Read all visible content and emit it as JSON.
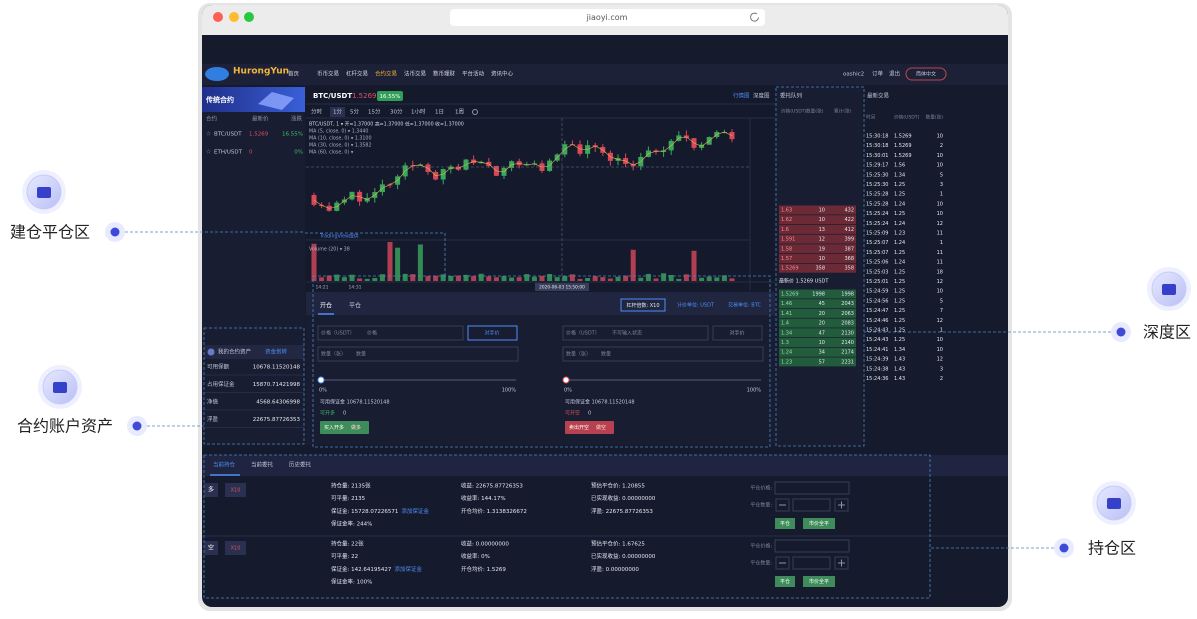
{
  "browser": {
    "url": "jiaoyi.com"
  },
  "annotations": [
    {
      "label": "建仓平仓区"
    },
    {
      "label": "合约账户资产"
    },
    {
      "label": "深度区"
    },
    {
      "label": "持仓区"
    }
  ],
  "nav": {
    "logo": "HurongYun",
    "items": [
      "首页",
      "币币交易",
      "杠杆交易",
      "合约交易",
      "法币交易",
      "数币理财",
      "平台活动",
      "资讯中心"
    ],
    "user": "oashic2",
    "links": [
      "订单",
      "退出"
    ],
    "language": "简体中文"
  },
  "markets": {
    "banner": "传统合约",
    "headers": [
      "合约",
      "最新价",
      "涨跌"
    ],
    "rows": [
      [
        "BTC/USDT",
        "1.5269",
        "16.55%"
      ],
      [
        "ETH/USDT",
        "0",
        "0%"
      ]
    ]
  },
  "assets": {
    "title": "我的合约资产",
    "transfer": "资金划转",
    "rows": [
      [
        "可用保额",
        "10678.11520148"
      ],
      [
        "占用保证金",
        "15870.71421998"
      ],
      [
        "净值",
        "4568.64306998"
      ],
      [
        "浮盈",
        "22675.87726353"
      ]
    ]
  },
  "chart": {
    "symbol": "BTC/USDT",
    "price": "1.5269",
    "change": "16.55%",
    "views": [
      "行情图",
      "深度图"
    ],
    "intervals": [
      "分时",
      "1分",
      "5分",
      "15分",
      "30分",
      "1小时",
      "1日",
      "1周"
    ],
    "legend": [
      "BTC/USDT, 1 ▾  开=1.37000  高=1.37000  低=1.37000  收=1.37000",
      "MA (5, close, 0) ▾  1.3440",
      "MA (10, close, 0) ▾  1.3100",
      "MA (30, close, 0) ▾  1.3582",
      "MA (60, close, 0) ▾"
    ],
    "credit": "TradingView提供",
    "volume": "Volume (20) ▾  38",
    "times": [
      "14:21",
      "14:31"
    ],
    "cursor_time": "2020-06-03 15:50:00"
  },
  "order": {
    "tabs": [
      "开仓",
      "平仓"
    ],
    "leverage": "杠杆倍数: X10",
    "quote": "计价单位: USDT",
    "base": "交易单位: BTC",
    "forms": [
      {
        "price_label": "价格（USDT）",
        "price_placeholder": "价格",
        "counter": "对手价",
        "qty_label": "数量（张）",
        "qty_placeholder": "数量",
        "min": "0%",
        "max": "100%",
        "margin": "可用保证金 10678.11520148",
        "available": "可开多",
        "available_value": "0",
        "submit": "买入开多",
        "submit_hint": "做多"
      },
      {
        "price_label": "价格（USDT）",
        "price_placeholder": "不可输入状态",
        "counter": "对手价",
        "qty_label": "数量（张）",
        "qty_placeholder": "数量",
        "min": "0%",
        "max": "100%",
        "margin": "可用保证金 10678.11520148",
        "available": "可开空",
        "available_value": "0",
        "submit": "卖出开空",
        "submit_hint": "做空"
      }
    ]
  },
  "book": {
    "title": "委托队列",
    "headers": [
      "价格(USDT)",
      "数量(张)",
      "累计(张)"
    ],
    "asks": [
      [
        "1.63",
        "10",
        "432"
      ],
      [
        "1.62",
        "10",
        "422"
      ],
      [
        "1.6",
        "13",
        "412"
      ],
      [
        "1.591",
        "12",
        "399"
      ],
      [
        "1.58",
        "19",
        "387"
      ],
      [
        "1.57",
        "10",
        "368"
      ],
      [
        "1.5269",
        "358",
        "358"
      ]
    ],
    "last": "最新价 1.5269 USDT",
    "bids": [
      [
        "1.5269",
        "1998",
        "1998"
      ],
      [
        "1.46",
        "45",
        "2043"
      ],
      [
        "1.41",
        "20",
        "2063"
      ],
      [
        "1.4",
        "20",
        "2083"
      ],
      [
        "1.34",
        "47",
        "2130"
      ],
      [
        "1.3",
        "10",
        "2140"
      ],
      [
        "1.24",
        "34",
        "2174"
      ],
      [
        "1.23",
        "57",
        "2231"
      ]
    ]
  },
  "trades": {
    "title": "最新交易",
    "headers": [
      "时间",
      "价格(USDT)",
      "数量(张)"
    ],
    "rows": [
      [
        "15:30:18",
        "1.5269",
        "10"
      ],
      [
        "15:30:18",
        "1.5269",
        "2"
      ],
      [
        "15:30:01",
        "1.5269",
        "10"
      ],
      [
        "15:29:17",
        "1.56",
        "10"
      ],
      [
        "15:25:30",
        "1.34",
        "5"
      ],
      [
        "15:25:30",
        "1.25",
        "3"
      ],
      [
        "15:25:28",
        "1.25",
        "1"
      ],
      [
        "15:25:28",
        "1.24",
        "10"
      ],
      [
        "15:25:24",
        "1.25",
        "10"
      ],
      [
        "15:25:24",
        "1.24",
        "12"
      ],
      [
        "15:25:09",
        "1.23",
        "11"
      ],
      [
        "15:25:07",
        "1.24",
        "1"
      ],
      [
        "15:25:07",
        "1.25",
        "11"
      ],
      [
        "15:25:06",
        "1.24",
        "11"
      ],
      [
        "15:25:03",
        "1.25",
        "18"
      ],
      [
        "15:25:01",
        "1.25",
        "12"
      ],
      [
        "15:24:59",
        "1.25",
        "10"
      ],
      [
        "15:24:56",
        "1.25",
        "5"
      ],
      [
        "15:24:47",
        "1.25",
        "7"
      ],
      [
        "15:24:46",
        "1.25",
        "12"
      ],
      [
        "15:24:43",
        "1.25",
        "1"
      ],
      [
        "15:24:43",
        "1.25",
        "10"
      ],
      [
        "15:24:41",
        "1.34",
        "10"
      ],
      [
        "15:24:39",
        "1.43",
        "12"
      ],
      [
        "15:24:38",
        "1.43",
        "3"
      ],
      [
        "15:24:36",
        "1.43",
        "2"
      ]
    ]
  },
  "positions": {
    "tabs": [
      "当前持仓",
      "当前委托",
      "历史委托"
    ],
    "rows": [
      {
        "side": "多",
        "leverage": "X10",
        "columns": [
          [
            "持仓量: 2135张",
            "可平量: 2135",
            "保证金: 15728.07226571",
            "保证金率: 244%"
          ],
          [
            "收益: 22675.87726353",
            "收益率: 144.17%",
            "开仓均价: 1.3138326672"
          ],
          [
            "预估平仓价: 1.20855",
            "已实现收益: 0.00000000",
            "浮盈: 22675.87726353"
          ]
        ],
        "add_margin": "添加保证金",
        "close_price": "平仓价格:",
        "close_qty": "平仓数量:",
        "close": "平仓",
        "close_all": "市价全平"
      },
      {
        "side": "空",
        "leverage": "X10",
        "columns": [
          [
            "持仓量: 22张",
            "可平量: 22",
            "保证金: 142.64195427",
            "保证金率: 100%"
          ],
          [
            "收益: 0.00000000",
            "收益率: 0%",
            "开仓均价: 1.5269"
          ],
          [
            "预估平仓价: 1.67625",
            "已实现收益: 0.00000000",
            "浮盈: 0.00000000"
          ]
        ],
        "add_margin": "添加保证金",
        "close_price": "平仓价格:",
        "close_qty": "平仓数量:",
        "close": "平仓",
        "close_all": "市价全平"
      }
    ]
  }
}
